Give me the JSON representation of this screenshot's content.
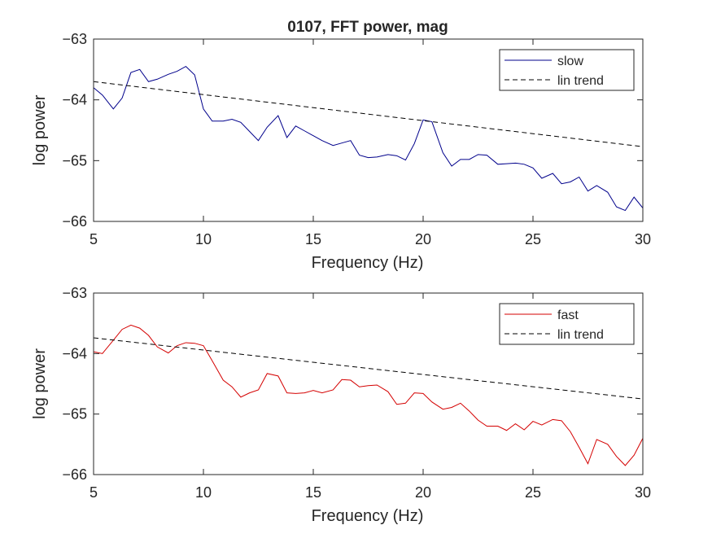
{
  "figure_title": "0107, FFT power, mag",
  "colors": {
    "slow": "#00008b",
    "fast": "#d40000",
    "trend": "#000000",
    "axis": "#262626"
  },
  "chart_data": [
    {
      "type": "line",
      "title": "0107, FFT power, mag",
      "xlabel": "Frequency (Hz)",
      "ylabel": "log power",
      "xlim": [
        5,
        30
      ],
      "ylim": [
        -66,
        -63
      ],
      "xticks": [
        5,
        10,
        15,
        20,
        25,
        30
      ],
      "yticks": [
        -66,
        -65,
        -64,
        -63
      ],
      "legend_position": "top-right",
      "series": [
        {
          "name": "slow",
          "style": "solid",
          "color": "#00008b",
          "x": [
            5.0,
            5.4,
            5.9,
            6.3,
            6.7,
            7.1,
            7.5,
            7.9,
            8.4,
            8.8,
            9.2,
            9.6,
            10.0,
            10.4,
            10.9,
            11.3,
            11.7,
            12.1,
            12.5,
            12.9,
            13.4,
            13.8,
            14.2,
            14.6,
            15.0,
            15.4,
            15.9,
            16.3,
            16.7,
            17.1,
            17.5,
            17.9,
            18.4,
            18.8,
            19.2,
            19.6,
            20.0,
            20.4,
            20.9,
            21.3,
            21.7,
            22.1,
            22.5,
            22.9,
            23.4,
            23.8,
            24.2,
            24.6,
            25.0,
            25.4,
            25.9,
            26.3,
            26.7,
            27.1,
            27.5,
            27.9,
            28.4,
            28.8,
            29.2,
            29.6,
            30.0
          ],
          "y": [
            -63.8,
            -63.92,
            -64.15,
            -63.97,
            -63.55,
            -63.5,
            -63.7,
            -63.66,
            -63.58,
            -63.53,
            -63.45,
            -63.59,
            -64.15,
            -64.35,
            -64.35,
            -64.32,
            -64.37,
            -64.52,
            -64.67,
            -64.45,
            -64.26,
            -64.62,
            -64.43,
            -64.51,
            -64.59,
            -64.67,
            -64.75,
            -64.71,
            -64.67,
            -64.91,
            -64.95,
            -64.94,
            -64.9,
            -64.92,
            -64.99,
            -64.72,
            -64.33,
            -64.36,
            -64.87,
            -65.09,
            -64.98,
            -64.98,
            -64.9,
            -64.91,
            -65.06,
            -65.05,
            -65.04,
            -65.06,
            -65.12,
            -65.29,
            -65.21,
            -65.38,
            -65.35,
            -65.27,
            -65.5,
            -65.41,
            -65.52,
            -65.76,
            -65.82,
            -65.6,
            -65.78
          ]
        },
        {
          "name": "lin trend",
          "style": "dashed",
          "color": "#000000",
          "x": [
            5,
            30
          ],
          "y": [
            -63.7,
            -64.77
          ]
        }
      ]
    },
    {
      "type": "line",
      "xlabel": "Frequency (Hz)",
      "ylabel": "log power",
      "xlim": [
        5,
        30
      ],
      "ylim": [
        -66,
        -63
      ],
      "xticks": [
        5,
        10,
        15,
        20,
        25,
        30
      ],
      "yticks": [
        -66,
        -65,
        -64,
        -63
      ],
      "legend_position": "top-right",
      "series": [
        {
          "name": "fast",
          "style": "solid",
          "color": "#d40000",
          "x": [
            5.0,
            5.4,
            5.9,
            6.3,
            6.7,
            7.1,
            7.5,
            7.9,
            8.4,
            8.8,
            9.2,
            9.6,
            10.0,
            10.4,
            10.9,
            11.3,
            11.7,
            12.1,
            12.5,
            12.9,
            13.4,
            13.8,
            14.2,
            14.6,
            15.0,
            15.4,
            15.9,
            16.3,
            16.7,
            17.1,
            17.5,
            17.9,
            18.4,
            18.8,
            19.2,
            19.6,
            20.0,
            20.4,
            20.9,
            21.3,
            21.7,
            22.1,
            22.5,
            22.9,
            23.4,
            23.8,
            24.2,
            24.6,
            25.0,
            25.4,
            25.9,
            26.3,
            26.7,
            27.1,
            27.5,
            27.9,
            28.4,
            28.8,
            29.2,
            29.6,
            30.0
          ],
          "y": [
            -63.97,
            -64.0,
            -63.78,
            -63.6,
            -63.53,
            -63.58,
            -63.7,
            -63.89,
            -63.99,
            -63.87,
            -63.82,
            -63.83,
            -63.87,
            -64.12,
            -64.44,
            -64.55,
            -64.72,
            -64.65,
            -64.6,
            -64.33,
            -64.37,
            -64.65,
            -64.66,
            -64.65,
            -64.61,
            -64.65,
            -64.6,
            -64.43,
            -64.44,
            -64.55,
            -64.53,
            -64.52,
            -64.63,
            -64.84,
            -64.82,
            -64.65,
            -64.66,
            -64.8,
            -64.92,
            -64.89,
            -64.82,
            -64.95,
            -65.1,
            -65.2,
            -65.2,
            -65.27,
            -65.16,
            -65.26,
            -65.12,
            -65.18,
            -65.09,
            -65.11,
            -65.29,
            -65.55,
            -65.82,
            -65.42,
            -65.5,
            -65.7,
            -65.85,
            -65.68,
            -65.4
          ]
        },
        {
          "name": "lin trend",
          "style": "dashed",
          "color": "#000000",
          "x": [
            5,
            30
          ],
          "y": [
            -63.74,
            -64.75
          ]
        }
      ]
    }
  ]
}
